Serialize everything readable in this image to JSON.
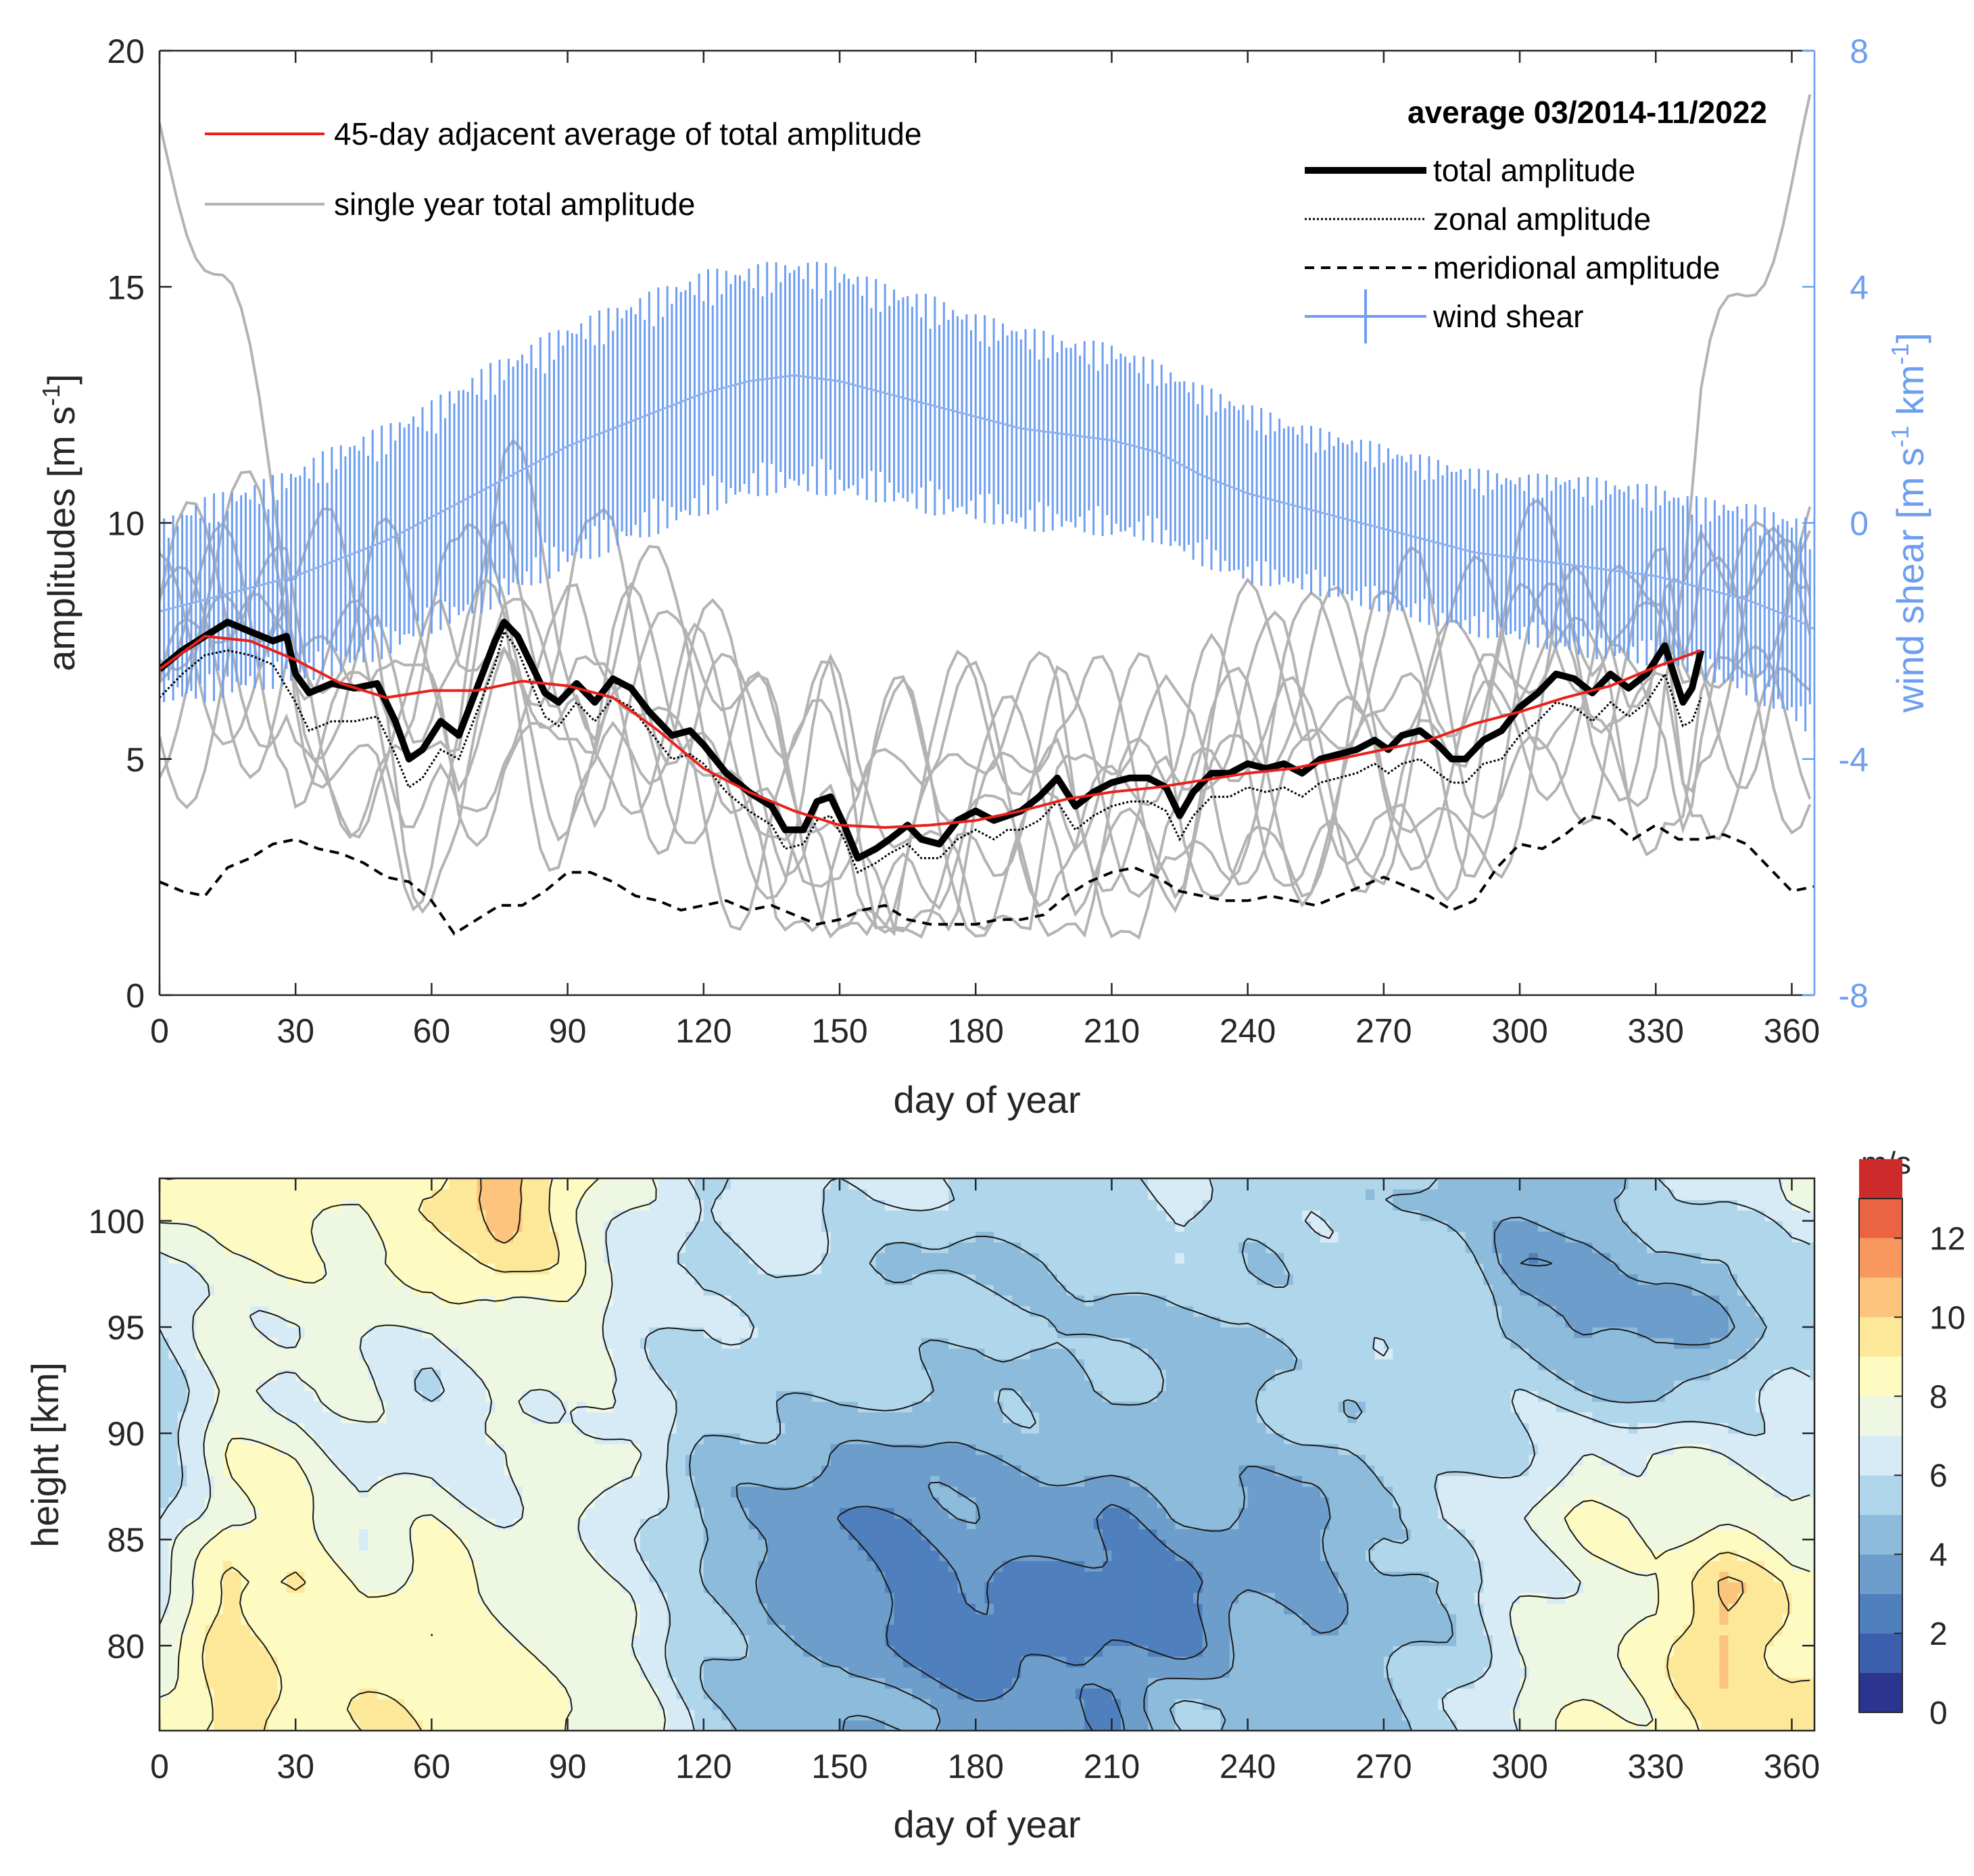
{
  "chart_data": [
    {
      "type": "line",
      "xlabel": "day of year",
      "ylabel": "amplitudes [m s",
      "ylabel_sup": "-1",
      "ylabel_close": "]",
      "y2label": "wind shear [m s",
      "y2label_sup1": "-1",
      "y2label_mid": " km",
      "y2label_sup2": "-1",
      "y2label_close": "]",
      "xlim": [
        0,
        365
      ],
      "ylim": [
        0,
        20
      ],
      "y2lim": [
        -8,
        8
      ],
      "xticks": [
        "0",
        "30",
        "60",
        "90",
        "120",
        "150",
        "180",
        "210",
        "240",
        "270",
        "300",
        "330",
        "360"
      ],
      "yticks": [
        "0",
        "5",
        "10",
        "15",
        "20"
      ],
      "y2ticks": [
        "-8",
        "-4",
        "0",
        "4",
        "8"
      ],
      "colors": {
        "red": "#e8221b",
        "grey": "#b3b3b3",
        "black": "#000000",
        "blue": "#6d9ef0"
      },
      "legend_left": [
        {
          "label": "45-day adjacent average of total amplitude",
          "style": "red"
        },
        {
          "label": "single year total amplitude",
          "style": "grey"
        }
      ],
      "legend_right_title": "average 03/2014-11/2022",
      "legend_right": [
        {
          "label": "total amplitude",
          "style": "thick"
        },
        {
          "label": "zonal amplitude",
          "style": "dotted"
        },
        {
          "label": "meridional amplitude",
          "style": "dashed"
        },
        {
          "label": "wind shear",
          "style": "errorbar"
        }
      ],
      "series": [
        {
          "name": "45-day adjacent average of total amplitude",
          "x": [
            0,
            10,
            20,
            30,
            40,
            50,
            60,
            70,
            80,
            90,
            100,
            110,
            120,
            130,
            140,
            150,
            160,
            170,
            180,
            190,
            200,
            210,
            220,
            230,
            240,
            250,
            260,
            270,
            280,
            290,
            300,
            310,
            320,
            330,
            340
          ],
          "values": [
            6.9,
            7.6,
            7.5,
            7.1,
            6.6,
            6.3,
            6.45,
            6.45,
            6.65,
            6.55,
            6.3,
            5.6,
            4.8,
            4.3,
            3.9,
            3.6,
            3.55,
            3.6,
            3.7,
            3.9,
            4.15,
            4.3,
            4.4,
            4.55,
            4.7,
            4.8,
            5.0,
            5.2,
            5.4,
            5.75,
            6.0,
            6.3,
            6.55,
            6.95,
            7.3
          ]
        },
        {
          "name": "total amplitude",
          "x": [
            0,
            5,
            10,
            15,
            20,
            25,
            28,
            30,
            33,
            38,
            43,
            48,
            52,
            55,
            58,
            62,
            66,
            70,
            74,
            76,
            79,
            82,
            85,
            88,
            92,
            96,
            100,
            104,
            108,
            113,
            117,
            120,
            125,
            130,
            135,
            138,
            142,
            145,
            148,
            151,
            154,
            158,
            161,
            165,
            168,
            172,
            176,
            180,
            184,
            187,
            190,
            194,
            198,
            202,
            206,
            210,
            214,
            218,
            222,
            225,
            228,
            232,
            236,
            240,
            244,
            248,
            252,
            256,
            260,
            264,
            268,
            271,
            274,
            278,
            282,
            285,
            288,
            292,
            296,
            300,
            304,
            308,
            312,
            316,
            320,
            324,
            328,
            332,
            336,
            338,
            340
          ],
          "values": [
            6.9,
            7.3,
            7.6,
            7.9,
            7.7,
            7.5,
            7.6,
            6.8,
            6.4,
            6.6,
            6.5,
            6.6,
            5.8,
            5.0,
            5.2,
            5.8,
            5.5,
            6.5,
            7.5,
            7.9,
            7.6,
            7.0,
            6.4,
            6.2,
            6.6,
            6.2,
            6.7,
            6.5,
            6.0,
            5.5,
            5.6,
            5.3,
            4.7,
            4.3,
            4.0,
            3.5,
            3.5,
            4.1,
            4.2,
            3.6,
            2.9,
            3.1,
            3.3,
            3.6,
            3.3,
            3.2,
            3.7,
            3.9,
            3.7,
            3.8,
            3.9,
            4.2,
            4.6,
            4.0,
            4.3,
            4.5,
            4.6,
            4.6,
            4.4,
            3.8,
            4.3,
            4.7,
            4.7,
            4.9,
            4.8,
            4.9,
            4.7,
            5.0,
            5.1,
            5.2,
            5.4,
            5.2,
            5.5,
            5.6,
            5.3,
            5.0,
            5.0,
            5.4,
            5.6,
            6.1,
            6.4,
            6.8,
            6.7,
            6.4,
            6.8,
            6.5,
            6.8,
            7.4,
            6.2,
            6.5,
            7.3
          ]
        },
        {
          "name": "zonal amplitude",
          "x": [
            0,
            5,
            10,
            15,
            20,
            25,
            30,
            33,
            38,
            43,
            48,
            52,
            55,
            58,
            62,
            66,
            70,
            74,
            76,
            79,
            82,
            85,
            88,
            92,
            96,
            100,
            104,
            108,
            113,
            117,
            120,
            125,
            130,
            135,
            138,
            142,
            145,
            148,
            151,
            154,
            158,
            161,
            165,
            168,
            172,
            176,
            180,
            184,
            187,
            190,
            194,
            198,
            202,
            206,
            210,
            214,
            218,
            222,
            225,
            228,
            232,
            236,
            240,
            244,
            248,
            252,
            256,
            260,
            264,
            268,
            271,
            274,
            278,
            282,
            285,
            288,
            292,
            296,
            300,
            304,
            308,
            312,
            316,
            320,
            324,
            328,
            332,
            336,
            338,
            340
          ],
          "values": [
            6.3,
            6.8,
            7.2,
            7.3,
            7.2,
            7.0,
            6.2,
            5.6,
            5.8,
            5.8,
            5.9,
            5.1,
            4.4,
            4.6,
            5.2,
            5.0,
            6.0,
            7.0,
            7.7,
            7.3,
            6.6,
            5.9,
            5.7,
            6.2,
            5.8,
            6.3,
            6.1,
            5.6,
            5.0,
            5.1,
            4.9,
            4.3,
            3.9,
            3.6,
            3.1,
            3.2,
            3.7,
            3.8,
            3.3,
            2.6,
            2.8,
            3.0,
            3.2,
            2.9,
            2.9,
            3.3,
            3.5,
            3.3,
            3.5,
            3.5,
            3.7,
            4.1,
            3.5,
            3.8,
            4.0,
            4.1,
            4.1,
            3.9,
            3.3,
            3.8,
            4.2,
            4.2,
            4.4,
            4.3,
            4.4,
            4.2,
            4.5,
            4.6,
            4.7,
            4.9,
            4.7,
            4.9,
            5.0,
            4.7,
            4.5,
            4.5,
            4.9,
            5.0,
            5.5,
            5.8,
            6.2,
            6.1,
            5.8,
            6.2,
            5.9,
            6.2,
            6.8,
            5.7,
            5.8,
            6.3
          ]
        },
        {
          "name": "meridional amplitude",
          "x": [
            0,
            5,
            10,
            15,
            20,
            25,
            30,
            35,
            40,
            45,
            50,
            55,
            60,
            65,
            70,
            75,
            80,
            85,
            90,
            95,
            100,
            105,
            110,
            115,
            120,
            125,
            130,
            135,
            140,
            145,
            150,
            155,
            160,
            165,
            170,
            175,
            180,
            185,
            190,
            195,
            200,
            205,
            210,
            215,
            220,
            225,
            230,
            235,
            240,
            245,
            250,
            255,
            260,
            265,
            270,
            275,
            280,
            285,
            290,
            295,
            300,
            305,
            310,
            315,
            320,
            325,
            330,
            335,
            340,
            345,
            350,
            355,
            360,
            365
          ],
          "values": [
            2.4,
            2.2,
            2.1,
            2.7,
            2.9,
            3.2,
            3.3,
            3.1,
            3.0,
            2.8,
            2.5,
            2.4,
            2.0,
            1.3,
            1.6,
            1.9,
            1.9,
            2.2,
            2.6,
            2.6,
            2.4,
            2.1,
            2.0,
            1.8,
            1.9,
            2.0,
            1.8,
            1.9,
            1.7,
            1.5,
            1.6,
            1.8,
            1.9,
            1.6,
            1.5,
            1.5,
            1.5,
            1.6,
            1.6,
            1.7,
            2.1,
            2.4,
            2.6,
            2.7,
            2.5,
            2.2,
            2.1,
            2.0,
            2.0,
            2.1,
            2.0,
            1.9,
            2.1,
            2.3,
            2.5,
            2.3,
            2.1,
            1.8,
            2.0,
            2.7,
            3.2,
            3.1,
            3.4,
            3.8,
            3.7,
            3.3,
            3.6,
            3.3,
            3.3,
            3.4,
            3.2,
            2.7,
            2.2,
            2.3
          ]
        },
        {
          "name": "wind shear",
          "axis": "right",
          "x": [
            0,
            10,
            20,
            30,
            40,
            50,
            60,
            70,
            80,
            90,
            100,
            110,
            120,
            130,
            140,
            150,
            160,
            170,
            180,
            190,
            200,
            210,
            220,
            230,
            240,
            250,
            260,
            270,
            280,
            290,
            300,
            310,
            320,
            330,
            340,
            350,
            360,
            365
          ],
          "values": [
            -1.5,
            -1.3,
            -1.1,
            -0.9,
            -0.6,
            -0.3,
            0.1,
            0.5,
            0.9,
            1.3,
            1.6,
            1.9,
            2.2,
            2.4,
            2.5,
            2.4,
            2.2,
            2.0,
            1.8,
            1.6,
            1.5,
            1.4,
            1.2,
            0.8,
            0.5,
            0.3,
            0.1,
            -0.1,
            -0.3,
            -0.5,
            -0.6,
            -0.7,
            -0.8,
            -0.9,
            -1.1,
            -1.3,
            -1.6,
            -1.8
          ],
          "errorbar": [
            1.4,
            1.6,
            1.6,
            1.7,
            1.8,
            1.8,
            1.8,
            1.9,
            1.9,
            1.9,
            1.9,
            1.9,
            1.9,
            1.8,
            1.8,
            1.8,
            1.7,
            1.7,
            1.6,
            1.6,
            1.5,
            1.5,
            1.4,
            1.4,
            1.4,
            1.3,
            1.3,
            1.3,
            1.3,
            1.3,
            1.3,
            1.4,
            1.4,
            1.4,
            1.4,
            1.5,
            1.6,
            1.7
          ]
        }
      ]
    },
    {
      "type": "heatmap",
      "subtype": "filled contour",
      "xlabel": "day of year",
      "ylabel": "height [km]",
      "xlim": [
        0,
        365
      ],
      "ylim": [
        76,
        102
      ],
      "xticks": [
        "0",
        "30",
        "60",
        "90",
        "120",
        "150",
        "180",
        "210",
        "240",
        "270",
        "300",
        "330",
        "360"
      ],
      "yticks": [
        "80",
        "85",
        "90",
        "95",
        "100"
      ],
      "colorbar_label": "m/s",
      "colorbar_ticks": [
        "0",
        "2",
        "4",
        "6",
        "8",
        "10",
        "12"
      ],
      "levels": [
        0,
        1,
        2,
        3,
        4,
        5,
        6,
        7,
        8,
        9,
        10,
        11,
        12,
        13
      ],
      "level_colors": [
        "#2b3590",
        "#3b5fac",
        "#4f7fbd",
        "#6c9dcb",
        "#8dbbdb",
        "#b0d6eb",
        "#d7ebf6",
        "#edf7e2",
        "#fdfbc2",
        "#fde89a",
        "#fcc47c",
        "#f8985f",
        "#ea6342",
        "#cd2a2c"
      ],
      "grid_days": [
        0,
        15,
        30,
        45,
        60,
        75,
        90,
        105,
        120,
        135,
        150,
        165,
        180,
        195,
        210,
        225,
        240,
        255,
        270,
        285,
        300,
        315,
        330,
        345,
        360
      ],
      "grid_heights": [
        77,
        80,
        83,
        86,
        89,
        92,
        95,
        98,
        101
      ],
      "values": [
        [
          8.5,
          9.6,
          8.5,
          9.0,
          8.6,
          8.8,
          8.2,
          7.4,
          5.5,
          4.6,
          4.4,
          3.9,
          3.4,
          3.5,
          3.1,
          4.9,
          4.9,
          4.5,
          4.9,
          5.8,
          7.1,
          8.2,
          8.4,
          9.4,
          9.4
        ],
        [
          7.2,
          9.5,
          8.8,
          8.2,
          9.0,
          8.2,
          7.5,
          7.0,
          5.2,
          4.2,
          3.8,
          2.7,
          2.2,
          2.6,
          3.1,
          2.6,
          4.6,
          4.0,
          4.6,
          5.4,
          7.0,
          7.7,
          8.2,
          10.5,
          8.4
        ],
        [
          6.7,
          9.2,
          8.8,
          7.7,
          8.7,
          7.7,
          7.0,
          6.8,
          5.0,
          4.0,
          3.4,
          2.6,
          3.1,
          2.6,
          2.4,
          2.6,
          3.7,
          3.9,
          4.6,
          5.1,
          6.6,
          7.5,
          7.8,
          10.1,
          8.6
        ],
        [
          5.6,
          8.2,
          8.3,
          7.1,
          7.7,
          7.1,
          7.3,
          6.2,
          4.6,
          3.9,
          3.1,
          3.1,
          3.8,
          3.7,
          2.9,
          4.3,
          3.7,
          3.4,
          5.2,
          6.2,
          6.9,
          8.3,
          7.8,
          7.8,
          7.2
        ],
        [
          5.3,
          7.9,
          7.9,
          6.6,
          6.9,
          6.5,
          7.7,
          7.2,
          4.8,
          4.4,
          3.9,
          3.8,
          4.3,
          4.3,
          4.6,
          4.3,
          4.6,
          4.5,
          5.3,
          5.4,
          6.0,
          6.9,
          6.9,
          6.9,
          6.5
        ],
        [
          5.5,
          7.2,
          6.9,
          6.9,
          6.0,
          7.2,
          7.3,
          6.2,
          5.9,
          5.2,
          5.7,
          5.1,
          4.8,
          5.0,
          5.4,
          4.5,
          4.6,
          5.6,
          5.4,
          5.5,
          5.7,
          5.2,
          4.7,
          5.6,
          6.0
        ],
        [
          5.8,
          7.4,
          7.1,
          7.3,
          6.9,
          7.6,
          7.6,
          6.6,
          5.7,
          5.9,
          5.3,
          5.7,
          5.1,
          5.1,
          4.5,
          4.9,
          4.7,
          5.3,
          5.7,
          5.4,
          4.7,
          3.8,
          3.3,
          3.9,
          5.6
        ],
        [
          6.6,
          7.8,
          7.8,
          8.0,
          8.5,
          9.6,
          8.4,
          6.2,
          5.8,
          6.5,
          5.3,
          4.6,
          4.8,
          5.1,
          5.6,
          5.8,
          5.2,
          5.6,
          5.8,
          5.6,
          3.3,
          3.4,
          4.8,
          4.5,
          6.0
        ],
        [
          8.3,
          8.8,
          8.9,
          7.8,
          9.0,
          10.6,
          8.7,
          6.9,
          5.9,
          6.8,
          6.2,
          6.1,
          5.8,
          5.7,
          5.5,
          6.2,
          5.6,
          5.6,
          5.4,
          4.5,
          4.5,
          4.6,
          6.1,
          6.1,
          7.0
        ]
      ]
    }
  ]
}
